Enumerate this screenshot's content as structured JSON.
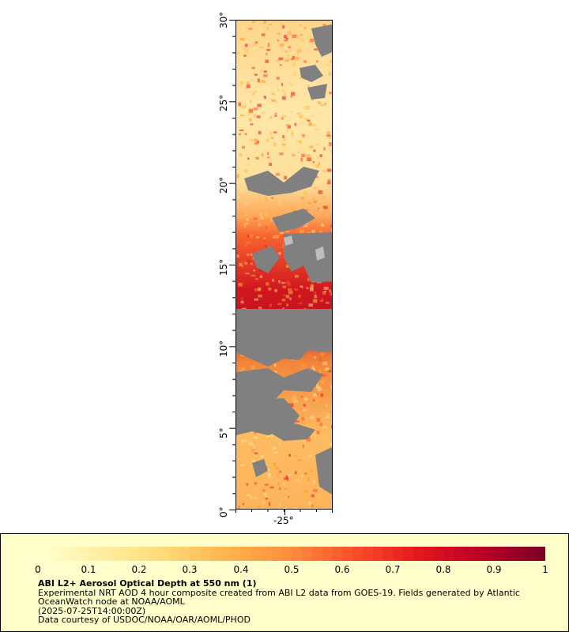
{
  "map": {
    "y_axis_labels": [
      "30°",
      "25°",
      "20°",
      "15°",
      "10°",
      "5°",
      "0°"
    ],
    "x_axis_label": "-25°",
    "no_data_color": "#808080",
    "colors": [
      "#ffffcc",
      "#ffeda0",
      "#fed976",
      "#feb24c",
      "#fd8d3c",
      "#fc4e2a",
      "#e31a1c",
      "#bd0026",
      "#800026"
    ]
  },
  "legend": {
    "ticks": [
      "0",
      "0.1",
      "0.2",
      "0.3",
      "0.4",
      "0.5",
      "0.6",
      "0.7",
      "0.8",
      "0.9",
      "1"
    ],
    "title": "ABI L2+ Aerosol Optical Depth at 550 nm (1)",
    "line1": "Experimental NRT AOD 4 hour composite created from ABI L2 data from GOES-19. Fields generated by Atlantic",
    "line2": "OceanWatch node at NOAA/AOML",
    "line3": "(2025-07-25T14:00:00Z)",
    "line4": "Data courtesy of USDOC/NOAA/OAR/AOML/PHOD"
  }
}
